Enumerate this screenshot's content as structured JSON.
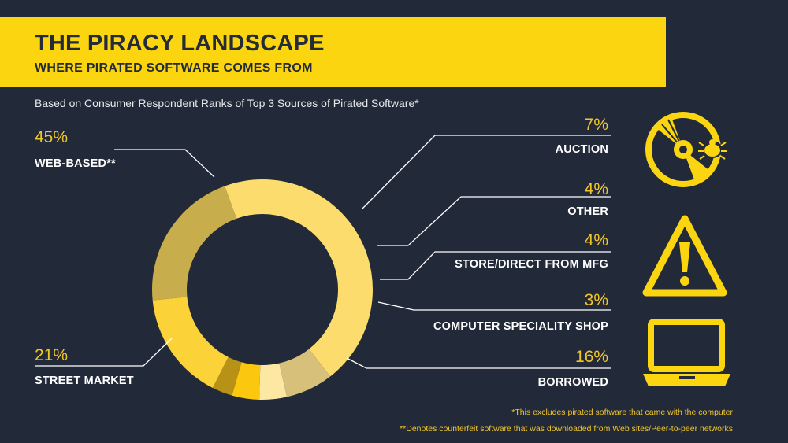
{
  "header": {
    "title": "THE PIRACY LANDSCAPE",
    "subtitle": "WHERE PIRATED SOFTWARE COMES FROM"
  },
  "note": "Based on Consumer Respondent Ranks of Top 3 Sources of Pirated Software*",
  "footnotes": [
    "*This excludes pirated software that came with the computer",
    "**Denotes counterfeit software that was downloaded from Web sites/Peer-to-peer networks"
  ],
  "icons": [
    "disc-bug-icon",
    "warning-icon",
    "laptop-icon"
  ],
  "colors": {
    "background": "#222a3a",
    "banner": "#fcd511",
    "accent_text": "#f2c62a"
  },
  "chart_data": {
    "type": "pie",
    "variant": "donut",
    "series": [
      {
        "label": "WEB-BASED**",
        "value": 45,
        "display": "45%",
        "color": "#fbdc6c"
      },
      {
        "label": "AUCTION",
        "value": 7,
        "display": "7%",
        "color": "#d6c07a"
      },
      {
        "label": "OTHER",
        "value": 4,
        "display": "4%",
        "color": "#fce8a2"
      },
      {
        "label": "STORE/DIRECT FROM MFG",
        "value": 4,
        "display": "4%",
        "color": "#fcc80f"
      },
      {
        "label": "COMPUTER SPECIALITY SHOP",
        "value": 3,
        "display": "3%",
        "color": "#b89216"
      },
      {
        "label": "BORROWED",
        "value": 16,
        "display": "16%",
        "color": "#fbd238"
      },
      {
        "label": "STREET MARKET",
        "value": 21,
        "display": "21%",
        "color": "#c8ad4c"
      }
    ]
  }
}
